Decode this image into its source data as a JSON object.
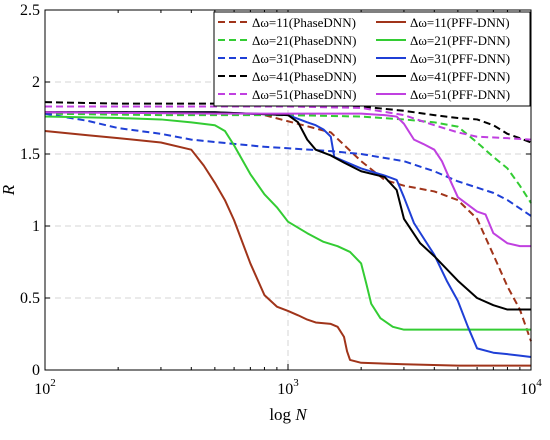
{
  "chart_data": {
    "type": "line",
    "xlabel": "log N",
    "ylabel": "R",
    "xscale": "log",
    "xlim": [
      100,
      10000
    ],
    "ylim": [
      0,
      2.5
    ],
    "grid": true,
    "legend_position": "top-right",
    "x_ticks": [
      {
        "value": 100,
        "base": "10",
        "exp": "2"
      },
      {
        "value": 1000,
        "base": "10",
        "exp": "3"
      },
      {
        "value": 10000,
        "base": "10",
        "exp": "4"
      }
    ],
    "y_ticks": [
      {
        "value": 0,
        "label": "0"
      },
      {
        "value": 0.5,
        "label": "0.5"
      },
      {
        "value": 1,
        "label": "1"
      },
      {
        "value": 1.5,
        "label": "1.5"
      },
      {
        "value": 2,
        "label": "2"
      },
      {
        "value": 2.5,
        "label": "2.5"
      }
    ],
    "series": [
      {
        "name": "Δω=11(PhaseDNN)",
        "color": "#a0341a",
        "dash": true,
        "points": [
          [
            100,
            1.79
          ],
          [
            200,
            1.79
          ],
          [
            400,
            1.78
          ],
          [
            800,
            1.77
          ],
          [
            1500,
            1.65
          ],
          [
            2000,
            1.45
          ],
          [
            2500,
            1.32
          ],
          [
            3000,
            1.28
          ],
          [
            4000,
            1.24
          ],
          [
            5000,
            1.18
          ],
          [
            6000,
            1.05
          ],
          [
            7000,
            0.8
          ],
          [
            8000,
            0.58
          ],
          [
            9000,
            0.42
          ],
          [
            10000,
            0.2
          ]
        ]
      },
      {
        "name": "Δω=21(PhaseDNN)",
        "color": "#33cc33",
        "dash": true,
        "points": [
          [
            100,
            1.78
          ],
          [
            300,
            1.77
          ],
          [
            1000,
            1.77
          ],
          [
            2000,
            1.76
          ],
          [
            3000,
            1.74
          ],
          [
            4000,
            1.72
          ],
          [
            5000,
            1.69
          ],
          [
            6000,
            1.58
          ],
          [
            7000,
            1.48
          ],
          [
            8000,
            1.4
          ],
          [
            9000,
            1.28
          ],
          [
            10000,
            1.16
          ]
        ]
      },
      {
        "name": "Δω=31(PhaseDNN)",
        "color": "#1f3fd6",
        "dash": true,
        "points": [
          [
            100,
            1.78
          ],
          [
            150,
            1.73
          ],
          [
            200,
            1.68
          ],
          [
            300,
            1.64
          ],
          [
            400,
            1.6
          ],
          [
            600,
            1.57
          ],
          [
            800,
            1.55
          ],
          [
            1000,
            1.54
          ],
          [
            1500,
            1.52
          ],
          [
            2000,
            1.5
          ],
          [
            3000,
            1.45
          ],
          [
            4000,
            1.38
          ],
          [
            5000,
            1.31
          ],
          [
            7000,
            1.23
          ],
          [
            8000,
            1.18
          ],
          [
            10000,
            1.07
          ]
        ]
      },
      {
        "name": "Δω=41(PhaseDNN)",
        "color": "#000000",
        "dash": true,
        "points": [
          [
            100,
            1.86
          ],
          [
            200,
            1.85
          ],
          [
            500,
            1.85
          ],
          [
            1000,
            1.85
          ],
          [
            1500,
            1.84
          ],
          [
            2000,
            1.83
          ],
          [
            3000,
            1.8
          ],
          [
            4000,
            1.77
          ],
          [
            5000,
            1.75
          ],
          [
            6000,
            1.74
          ],
          [
            7000,
            1.7
          ],
          [
            8000,
            1.64
          ],
          [
            9000,
            1.61
          ],
          [
            10000,
            1.58
          ]
        ]
      },
      {
        "name": "Δω=51(PhaseDNN)",
        "color": "#c040e0",
        "dash": true,
        "points": [
          [
            100,
            1.83
          ],
          [
            300,
            1.83
          ],
          [
            1000,
            1.83
          ],
          [
            2000,
            1.82
          ],
          [
            3000,
            1.77
          ],
          [
            4000,
            1.7
          ],
          [
            5000,
            1.65
          ],
          [
            6000,
            1.62
          ],
          [
            8000,
            1.61
          ],
          [
            10000,
            1.6
          ]
        ]
      },
      {
        "name": "Δω=11(PFF-DNN)",
        "color": "#a0341a",
        "dash": false,
        "points": [
          [
            100,
            1.66
          ],
          [
            150,
            1.63
          ],
          [
            200,
            1.61
          ],
          [
            300,
            1.58
          ],
          [
            400,
            1.53
          ],
          [
            450,
            1.42
          ],
          [
            500,
            1.3
          ],
          [
            550,
            1.18
          ],
          [
            600,
            1.04
          ],
          [
            700,
            0.74
          ],
          [
            800,
            0.52
          ],
          [
            900,
            0.44
          ],
          [
            1000,
            0.41
          ],
          [
            1100,
            0.38
          ],
          [
            1200,
            0.35
          ],
          [
            1300,
            0.33
          ],
          [
            1500,
            0.32
          ],
          [
            1600,
            0.3
          ],
          [
            1700,
            0.23
          ],
          [
            1750,
            0.13
          ],
          [
            1800,
            0.07
          ],
          [
            2000,
            0.05
          ],
          [
            3000,
            0.04
          ],
          [
            5000,
            0.03
          ],
          [
            10000,
            0.03
          ]
        ]
      },
      {
        "name": "Δω=21(PFF-DNN)",
        "color": "#33cc33",
        "dash": false,
        "points": [
          [
            100,
            1.76
          ],
          [
            200,
            1.75
          ],
          [
            300,
            1.74
          ],
          [
            400,
            1.72
          ],
          [
            500,
            1.7
          ],
          [
            550,
            1.66
          ],
          [
            600,
            1.56
          ],
          [
            700,
            1.36
          ],
          [
            800,
            1.22
          ],
          [
            900,
            1.13
          ],
          [
            1000,
            1.03
          ],
          [
            1200,
            0.95
          ],
          [
            1400,
            0.89
          ],
          [
            1600,
            0.86
          ],
          [
            1800,
            0.82
          ],
          [
            2000,
            0.74
          ],
          [
            2100,
            0.6
          ],
          [
            2200,
            0.46
          ],
          [
            2400,
            0.36
          ],
          [
            2700,
            0.3
          ],
          [
            3000,
            0.28
          ],
          [
            5000,
            0.28
          ],
          [
            10000,
            0.28
          ]
        ]
      },
      {
        "name": "Δω=31(PFF-DNN)",
        "color": "#1f3fd6",
        "dash": false,
        "points": [
          [
            100,
            1.79
          ],
          [
            500,
            1.79
          ],
          [
            1000,
            1.77
          ],
          [
            1200,
            1.72
          ],
          [
            1300,
            1.7
          ],
          [
            1400,
            1.67
          ],
          [
            1500,
            1.62
          ],
          [
            1550,
            1.48
          ],
          [
            1700,
            1.45
          ],
          [
            2000,
            1.4
          ],
          [
            2500,
            1.35
          ],
          [
            2800,
            1.32
          ],
          [
            3000,
            1.2
          ],
          [
            3300,
            1.02
          ],
          [
            3600,
            0.92
          ],
          [
            4000,
            0.8
          ],
          [
            4500,
            0.62
          ],
          [
            5000,
            0.48
          ],
          [
            5500,
            0.3
          ],
          [
            6000,
            0.15
          ],
          [
            7000,
            0.12
          ],
          [
            8000,
            0.11
          ],
          [
            9000,
            0.1
          ],
          [
            10000,
            0.09
          ]
        ]
      },
      {
        "name": "Δω=41(PFF-DNN)",
        "color": "#000000",
        "dash": false,
        "points": [
          [
            100,
            1.79
          ],
          [
            500,
            1.79
          ],
          [
            1000,
            1.77
          ],
          [
            1100,
            1.72
          ],
          [
            1200,
            1.6
          ],
          [
            1300,
            1.53
          ],
          [
            1500,
            1.49
          ],
          [
            1700,
            1.44
          ],
          [
            2000,
            1.38
          ],
          [
            2500,
            1.34
          ],
          [
            2800,
            1.25
          ],
          [
            3000,
            1.05
          ],
          [
            3500,
            0.88
          ],
          [
            4000,
            0.79
          ],
          [
            5000,
            0.62
          ],
          [
            6000,
            0.5
          ],
          [
            7000,
            0.45
          ],
          [
            8000,
            0.42
          ],
          [
            10000,
            0.42
          ]
        ]
      },
      {
        "name": "Δω=51(PFF-DNN)",
        "color": "#c040e0",
        "dash": false,
        "points": [
          [
            100,
            1.79
          ],
          [
            500,
            1.78
          ],
          [
            1000,
            1.78
          ],
          [
            2000,
            1.78
          ],
          [
            2500,
            1.77
          ],
          [
            2800,
            1.76
          ],
          [
            3000,
            1.71
          ],
          [
            3300,
            1.6
          ],
          [
            3600,
            1.57
          ],
          [
            4000,
            1.53
          ],
          [
            4300,
            1.45
          ],
          [
            4700,
            1.3
          ],
          [
            5000,
            1.2
          ],
          [
            6000,
            1.1
          ],
          [
            6500,
            1.08
          ],
          [
            7000,
            0.95
          ],
          [
            8000,
            0.88
          ],
          [
            9000,
            0.86
          ],
          [
            10000,
            0.86
          ]
        ]
      }
    ]
  }
}
